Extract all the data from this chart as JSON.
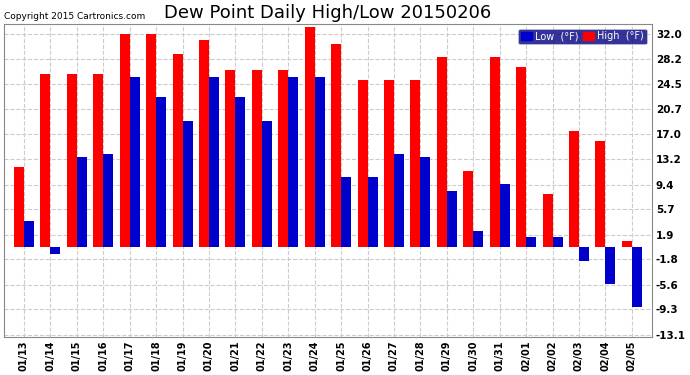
{
  "title": "Dew Point Daily High/Low 20150206",
  "copyright": "Copyright 2015 Cartronics.com",
  "dates": [
    "01/13",
    "01/14",
    "01/15",
    "01/16",
    "01/17",
    "01/18",
    "01/19",
    "01/20",
    "01/21",
    "01/22",
    "01/23",
    "01/24",
    "01/25",
    "01/26",
    "01/27",
    "01/28",
    "01/29",
    "01/30",
    "01/31",
    "02/01",
    "02/02",
    "02/03",
    "02/04",
    "02/05"
  ],
  "high": [
    12.0,
    26.0,
    26.0,
    26.0,
    32.0,
    32.0,
    29.0,
    31.0,
    26.5,
    26.5,
    26.5,
    33.0,
    30.5,
    25.0,
    25.0,
    25.0,
    28.5,
    11.5,
    28.5,
    27.0,
    8.0,
    17.5,
    16.0,
    1.0
  ],
  "low": [
    4.0,
    -1.0,
    13.5,
    14.0,
    25.5,
    22.5,
    19.0,
    25.5,
    22.5,
    19.0,
    25.5,
    25.5,
    10.5,
    10.5,
    14.0,
    13.5,
    8.5,
    2.5,
    9.5,
    1.5,
    1.5,
    -2.0,
    -5.5,
    -9.0
  ],
  "high_color": "#ff0000",
  "low_color": "#0000cc",
  "bg_color": "#ffffff",
  "plot_bg_color": "#ffffff",
  "yticks": [
    32.0,
    28.2,
    24.5,
    20.7,
    17.0,
    13.2,
    9.4,
    5.7,
    1.9,
    -1.8,
    -5.6,
    -9.3,
    -13.1
  ],
  "ylim": [
    -13.5,
    33.5
  ],
  "title_fontsize": 13,
  "bar_width": 0.38
}
